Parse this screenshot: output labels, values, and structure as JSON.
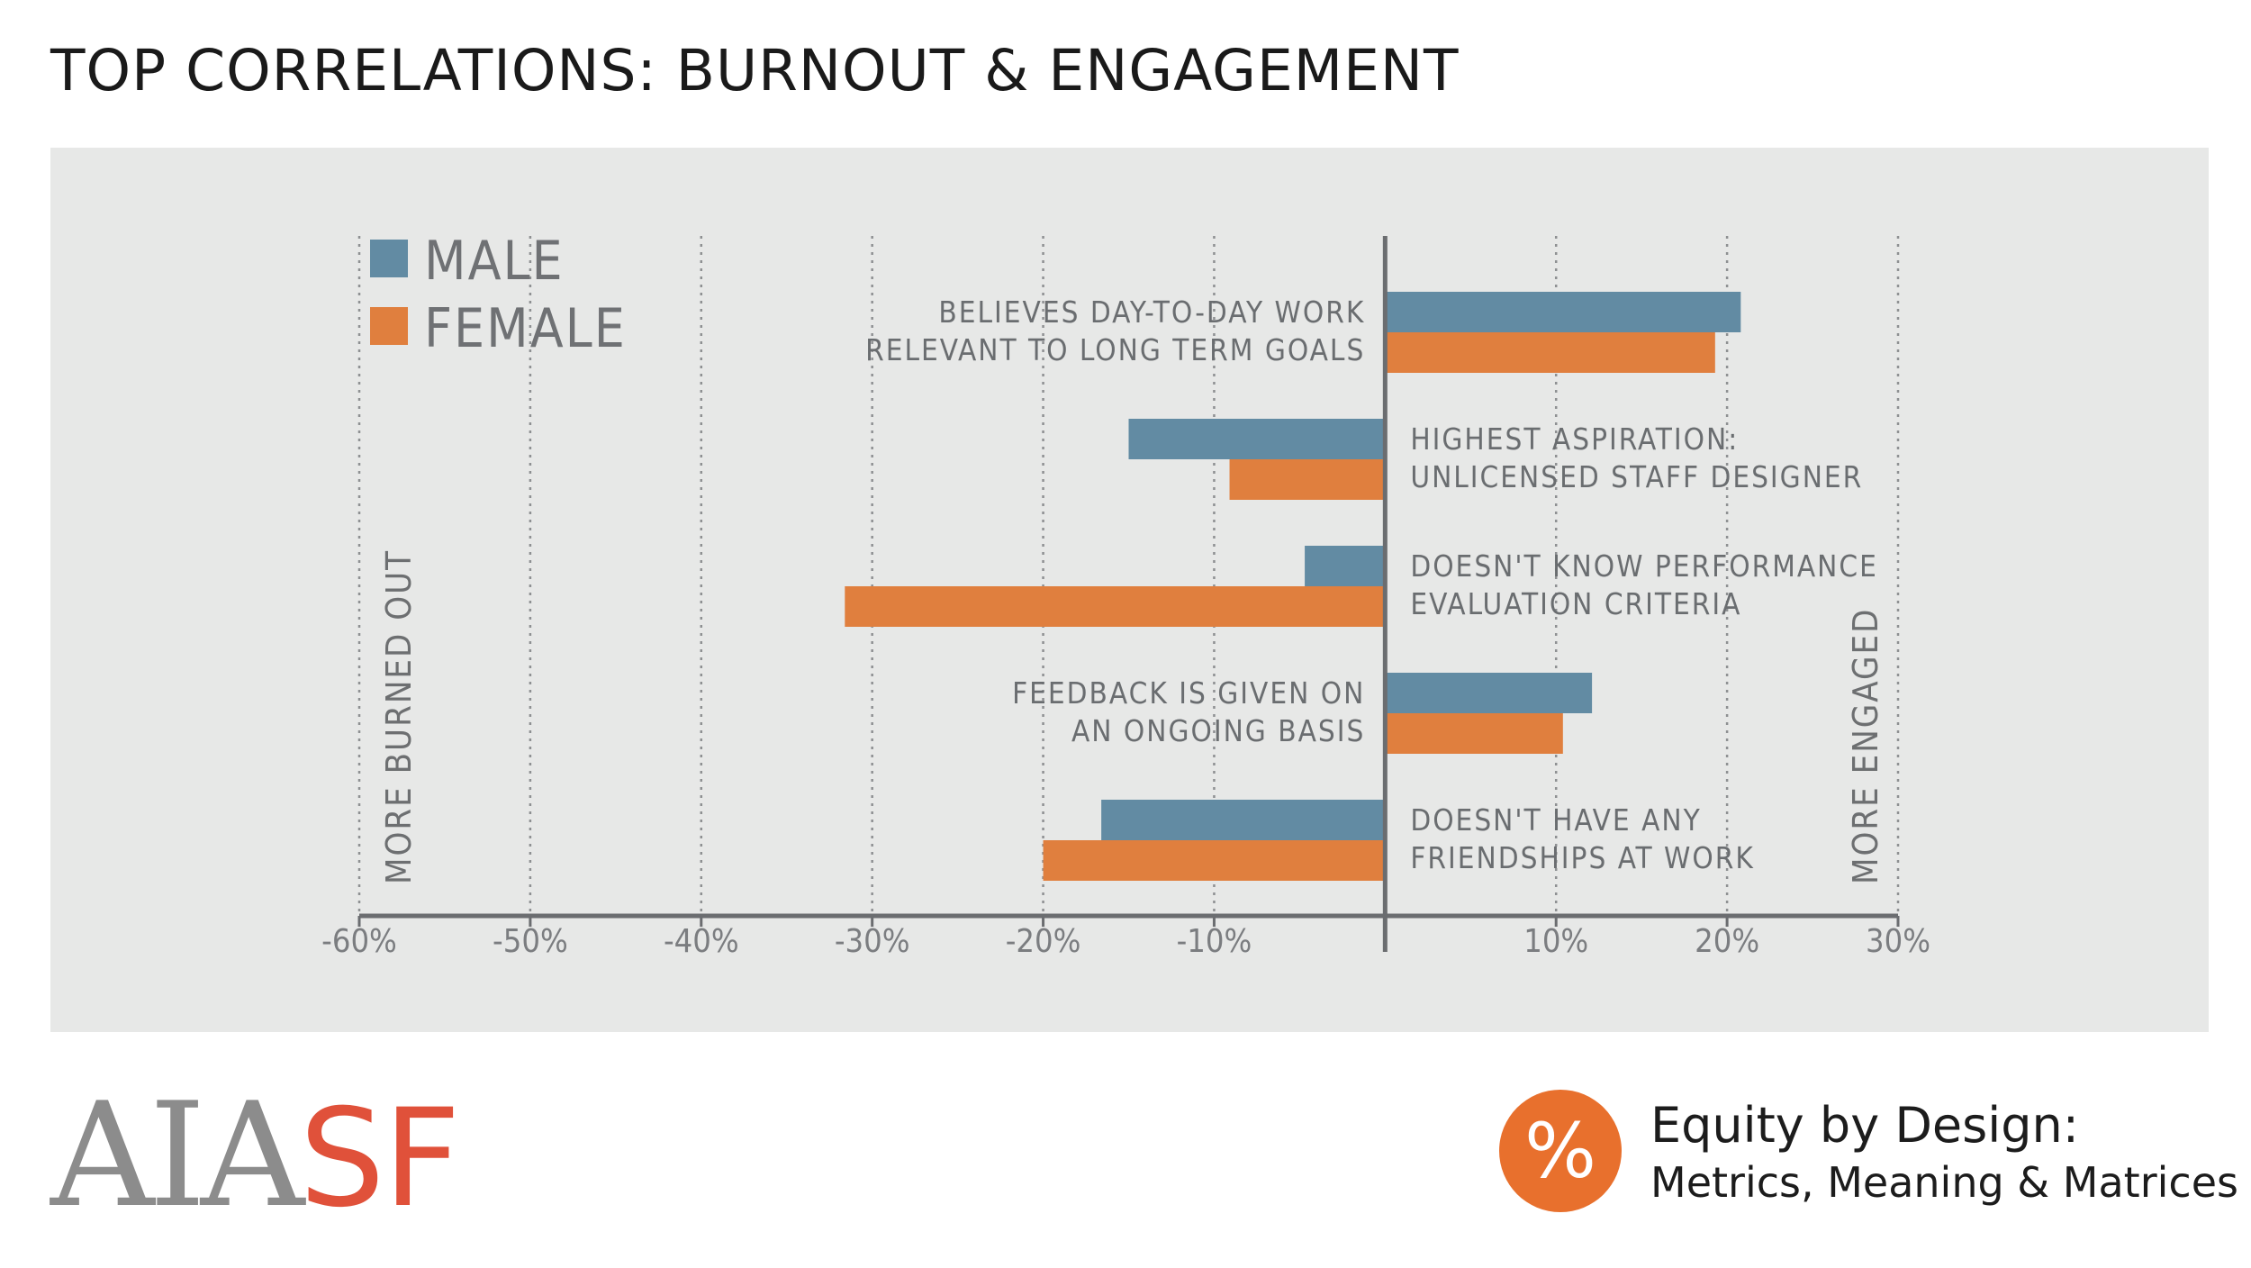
{
  "title": "TOP CORRELATIONS: BURNOUT & ENGAGEMENT",
  "colors": {
    "male": "#628ba3",
    "female": "#e07f3e",
    "panel_background": "#e7e8e7",
    "brand_orange": "#e8702d",
    "logo_red": "#e0513a",
    "logo_grey": "#8c8c8c"
  },
  "chart_data": {
    "type": "bar",
    "orientation": "horizontal",
    "title": "",
    "xlim": [
      -60,
      30
    ],
    "x_ticks": [
      -60,
      -50,
      -40,
      -30,
      -20,
      -10,
      0,
      10,
      20,
      30
    ],
    "x_tick_labels": [
      "-60%",
      "-50%",
      "-40%",
      "-30%",
      "-20%",
      "-10%",
      "",
      "10%",
      "20%",
      "30%"
    ],
    "grid": "vertical dotted lines",
    "legend_position": "top-left",
    "left_axis_label": "MORE BURNED OUT",
    "right_axis_label": "MORE ENGAGED",
    "categories": [
      [
        "BELIEVES DAY-TO-DAY WORK",
        "RELEVANT TO LONG TERM GOALS"
      ],
      [
        "HIGHEST ASPIRATION:",
        "UNLICENSED STAFF DESIGNER"
      ],
      [
        "DOESN'T KNOW PERFORMANCE",
        "EVALUATION CRITERIA"
      ],
      [
        "FEEDBACK IS GIVEN ON",
        "AN ONGOING BASIS"
      ],
      [
        "DOESN'T HAVE ANY",
        "FRIENDSHIPS AT WORK"
      ]
    ],
    "series": [
      {
        "name": "MALE",
        "color": "#628ba3",
        "values": [
          20.8,
          -15,
          -4.7,
          12.1,
          -16.6
        ]
      },
      {
        "name": "FEMALE",
        "color": "#e07f3e",
        "values": [
          19.3,
          -9.1,
          -31.6,
          10.4,
          -20
        ]
      }
    ]
  },
  "footer": {
    "logo_part1": "AIA",
    "logo_part2": "SF",
    "equity_icon": "%",
    "equity_title": "Equity by Design:",
    "equity_subtitle": "Metrics, Meaning & Matrices"
  }
}
